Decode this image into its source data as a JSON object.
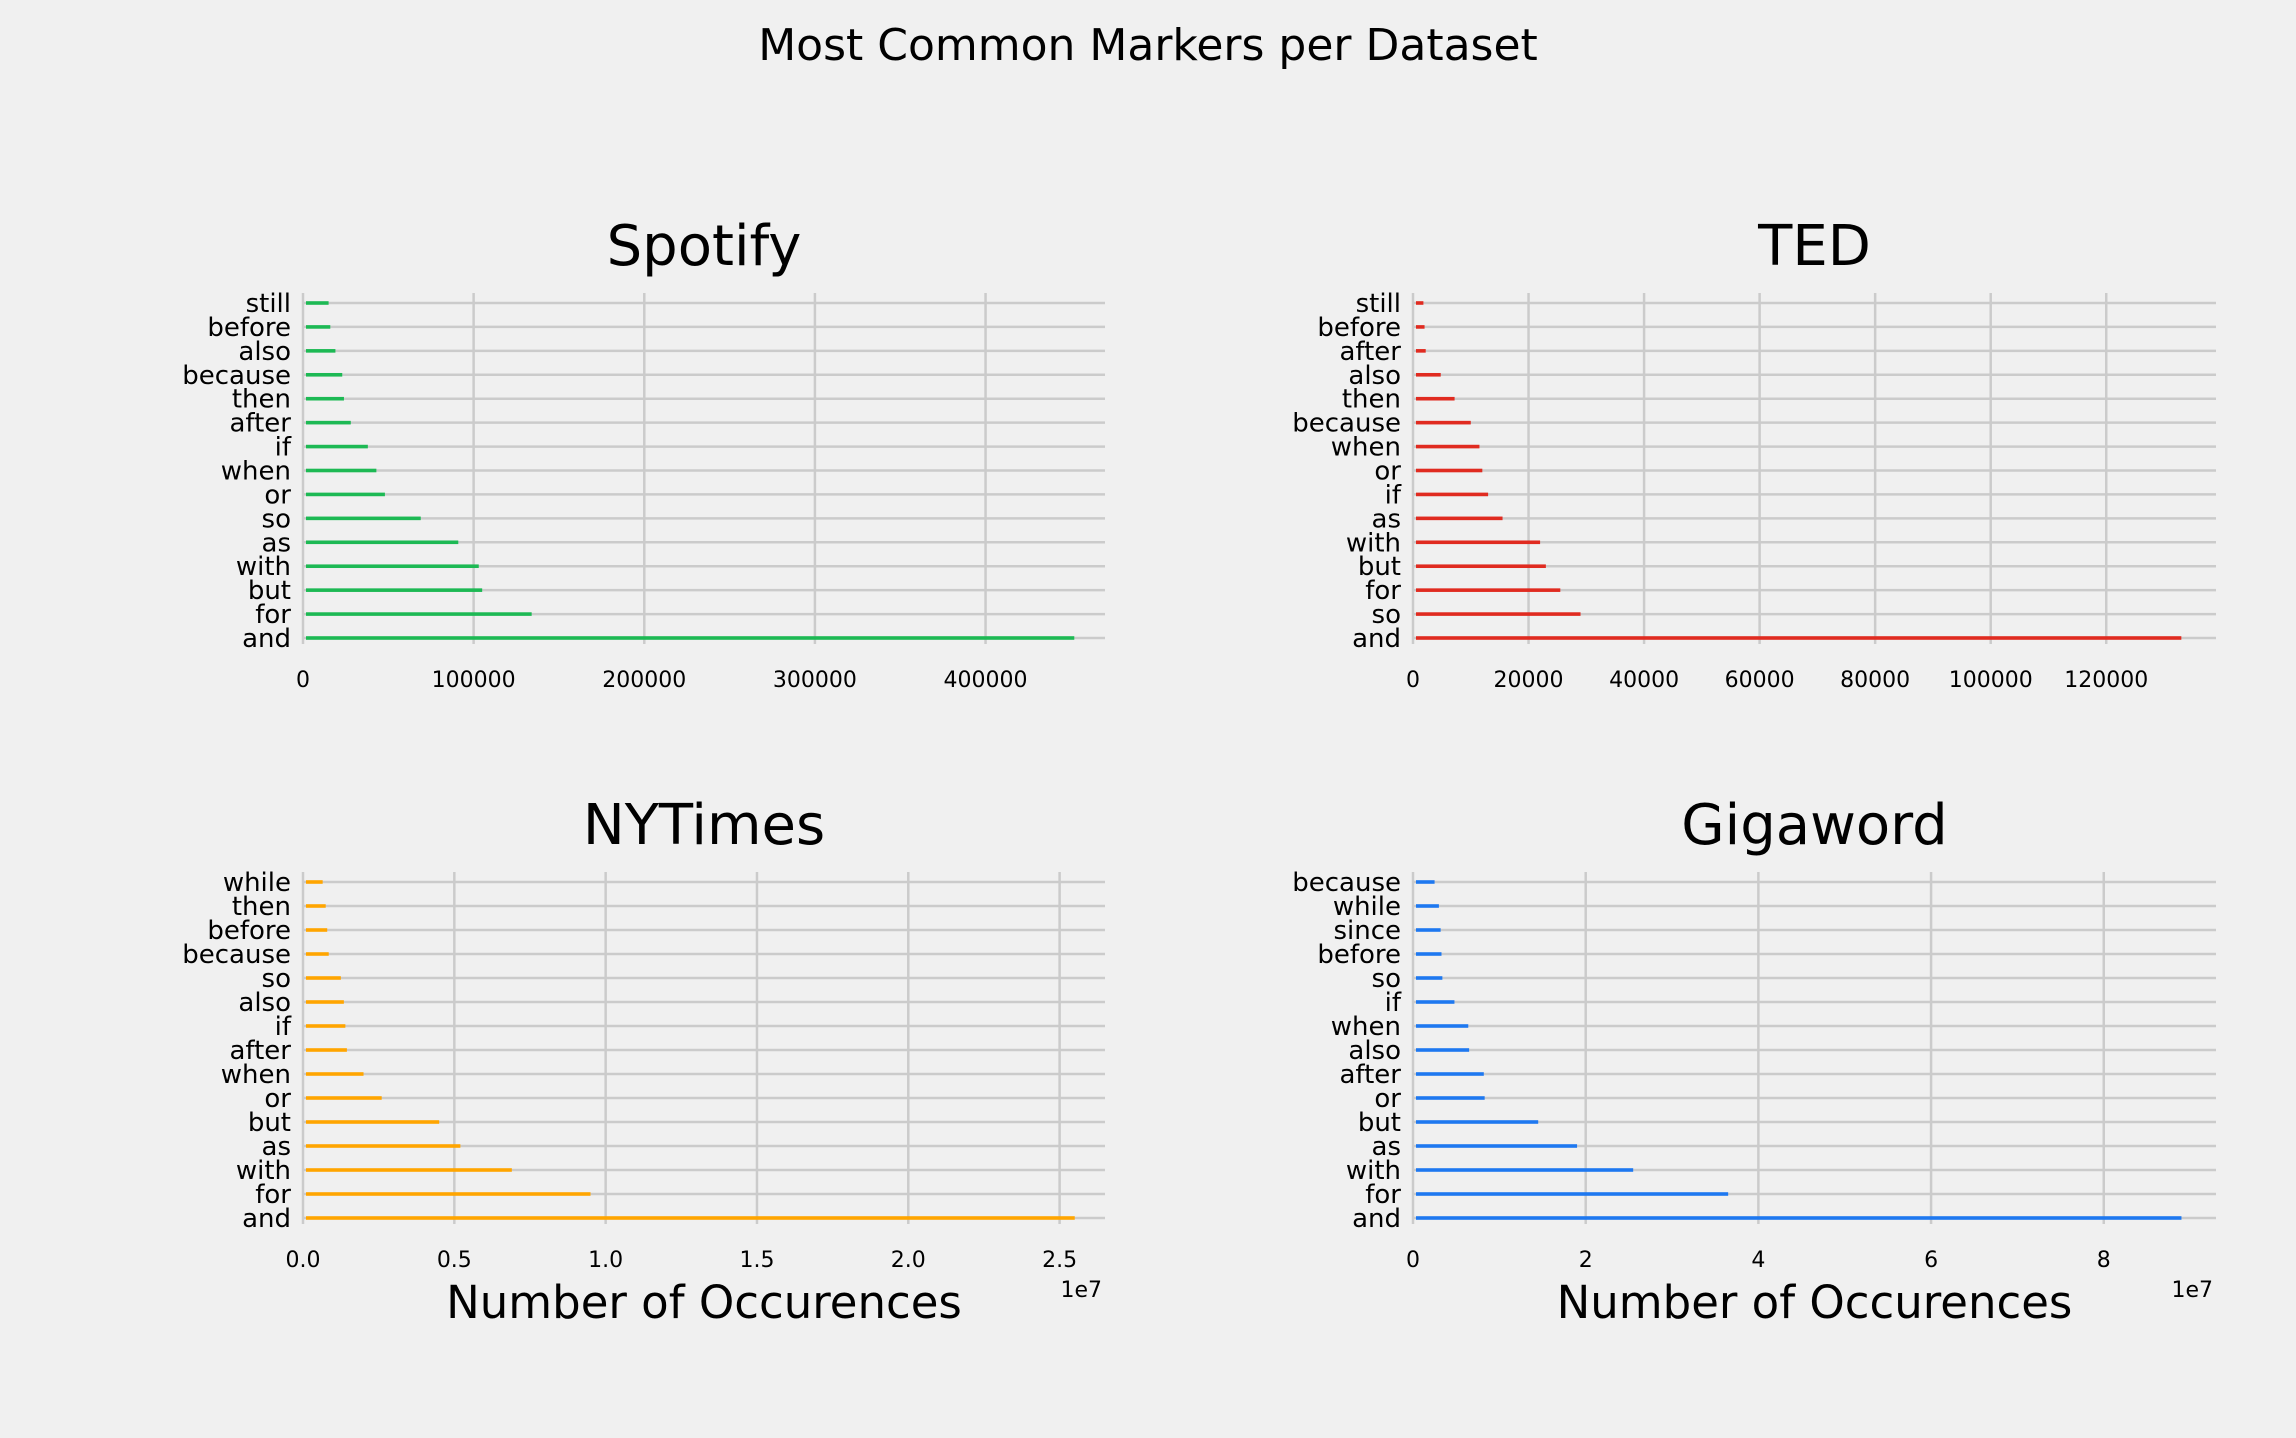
{
  "figure": {
    "title": "Most Common Markers per Dataset",
    "background": "#f0f0f0"
  },
  "chart_data": [
    {
      "type": "bar",
      "orientation": "horizontal",
      "title": "Spotify",
      "xlabel": "",
      "color": "#1db954",
      "categories": [
        "and",
        "for",
        "but",
        "with",
        "as",
        "so",
        "or",
        "when",
        "if",
        "after",
        "then",
        "because",
        "also",
        "before",
        "still"
      ],
      "values": [
        452000,
        134000,
        105000,
        103000,
        91000,
        69000,
        48000,
        43000,
        38000,
        28000,
        24000,
        23000,
        19000,
        16000,
        15000
      ],
      "xlim": [
        0,
        470000
      ],
      "xticks": [
        0,
        100000,
        200000,
        300000,
        400000
      ],
      "xtick_labels": [
        "0",
        "100000",
        "200000",
        "300000",
        "400000"
      ],
      "offset_label": "",
      "grid": true
    },
    {
      "type": "bar",
      "orientation": "horizontal",
      "title": "TED",
      "xlabel": "",
      "color": "#e02b20",
      "categories": [
        "and",
        "so",
        "for",
        "but",
        "with",
        "as",
        "if",
        "or",
        "when",
        "because",
        "then",
        "also",
        "after",
        "before",
        "still"
      ],
      "values": [
        133000,
        29000,
        25500,
        23000,
        22000,
        15500,
        13000,
        12000,
        11500,
        10000,
        7200,
        4800,
        2200,
        2000,
        1800
      ],
      "xlim": [
        0,
        139000
      ],
      "xticks": [
        0,
        20000,
        40000,
        60000,
        80000,
        100000,
        120000
      ],
      "xtick_labels": [
        "0",
        "20000",
        "40000",
        "60000",
        "80000",
        "100000",
        "120000"
      ],
      "offset_label": "",
      "grid": true
    },
    {
      "type": "bar",
      "orientation": "horizontal",
      "title": "NYTimes",
      "xlabel": "Number of Occurences",
      "color": "#ffa500",
      "categories": [
        "and",
        "for",
        "with",
        "as",
        "but",
        "or",
        "when",
        "after",
        "if",
        "also",
        "so",
        "because",
        "before",
        "then",
        "while"
      ],
      "values": [
        25500000,
        9500000,
        6900000,
        5200000,
        4500000,
        2600000,
        2000000,
        1450000,
        1400000,
        1350000,
        1250000,
        850000,
        800000,
        750000,
        650000
      ],
      "xlim": [
        0,
        26500000
      ],
      "xticks": [
        0,
        5000000,
        10000000,
        15000000,
        20000000,
        25000000
      ],
      "xtick_labels": [
        "0.0",
        "0.5",
        "1.0",
        "1.5",
        "2.0",
        "2.5"
      ],
      "offset_label": "1e7",
      "grid": true
    },
    {
      "type": "bar",
      "orientation": "horizontal",
      "title": "Gigaword",
      "xlabel": "Number of Occurences",
      "color": "#1e78f0",
      "categories": [
        "and",
        "for",
        "with",
        "as",
        "but",
        "or",
        "after",
        "also",
        "when",
        "if",
        "so",
        "before",
        "since",
        "while",
        "because"
      ],
      "values": [
        89000000,
        36500000,
        25500000,
        19000000,
        14500000,
        8300000,
        8200000,
        6500000,
        6400000,
        4800000,
        3400000,
        3300000,
        3200000,
        3000000,
        2500000
      ],
      "xlim": [
        0,
        93000000
      ],
      "xticks": [
        0,
        20000000,
        40000000,
        60000000,
        80000000
      ],
      "xtick_labels": [
        "0",
        "2",
        "4",
        "6",
        "8"
      ],
      "offset_label": "1e7",
      "grid": true
    }
  ]
}
